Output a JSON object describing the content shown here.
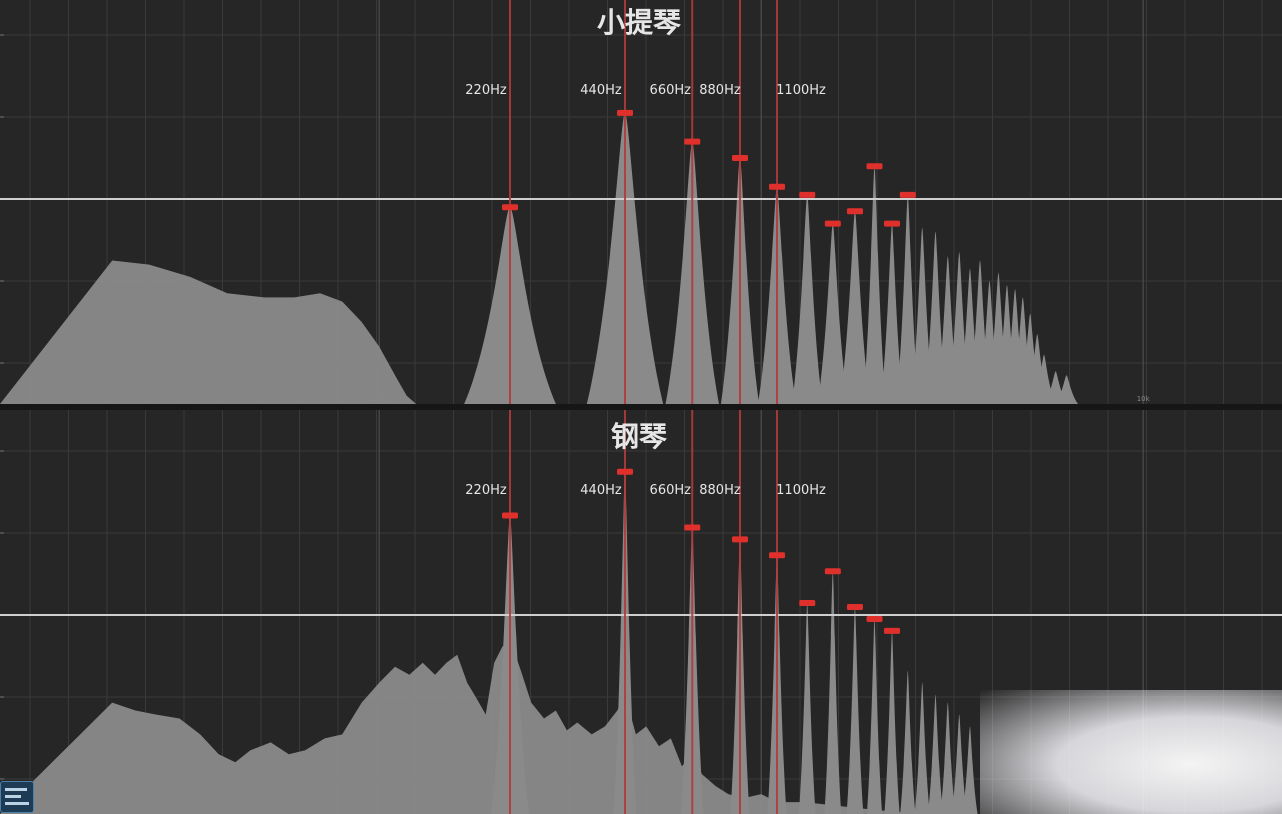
{
  "colors": {
    "background": "#262626",
    "grid": "#3a3a3a",
    "gridMajor": "#4a4a4a",
    "reference": "#cfcfcf",
    "spectrum": "#8a8a8a",
    "harmonic": "#b23a3a",
    "peakMarker": "#e0302b",
    "text": "#e6e6e6"
  },
  "chart_data": [
    {
      "type": "area",
      "title": "小提琴",
      "xscale": "log",
      "xlim": [
        20,
        20000
      ],
      "ylim": [
        0,
        100
      ],
      "reference_level": 50,
      "minor_tick_labels": [
        {
          "x": 100,
          "label": "100"
        },
        {
          "x": 10000,
          "label": "10k"
        }
      ],
      "harmonic_lines": [
        {
          "x": 220,
          "label": "220Hz"
        },
        {
          "x": 440,
          "label": "440Hz"
        },
        {
          "x": 660,
          "label": "660Hz"
        },
        {
          "x": 880,
          "label": "880Hz"
        },
        {
          "x": 1100,
          "label": "1100Hz"
        }
      ],
      "peaks": [
        {
          "x": 220,
          "y": 48
        },
        {
          "x": 440,
          "y": 71
        },
        {
          "x": 660,
          "y": 64
        },
        {
          "x": 880,
          "y": 60
        },
        {
          "x": 1100,
          "y": 53
        },
        {
          "x": 1320,
          "y": 51
        },
        {
          "x": 1540,
          "y": 44
        },
        {
          "x": 1760,
          "y": 47
        },
        {
          "x": 1980,
          "y": 58
        },
        {
          "x": 2200,
          "y": 44
        },
        {
          "x": 2420,
          "y": 51
        }
      ],
      "envelope": [
        [
          20,
          35
        ],
        [
          25,
          34
        ],
        [
          32,
          31
        ],
        [
          40,
          27
        ],
        [
          50,
          26
        ],
        [
          60,
          26
        ],
        [
          70,
          27
        ],
        [
          80,
          25
        ],
        [
          90,
          20
        ],
        [
          100,
          14
        ],
        [
          110,
          7
        ],
        [
          118,
          2
        ],
        [
          125,
          0
        ]
      ],
      "partials": [
        {
          "x": 220,
          "y": 48,
          "w": 0.12
        },
        {
          "x": 440,
          "y": 71,
          "w": 0.1
        },
        {
          "x": 660,
          "y": 64,
          "w": 0.07
        },
        {
          "x": 880,
          "y": 60,
          "w": 0.05
        },
        {
          "x": 1100,
          "y": 53,
          "w": 0.05
        },
        {
          "x": 1320,
          "y": 51,
          "w": 0.04
        },
        {
          "x": 1540,
          "y": 44,
          "w": 0.04
        },
        {
          "x": 1760,
          "y": 47,
          "w": 0.04
        },
        {
          "x": 1980,
          "y": 58,
          "w": 0.03
        },
        {
          "x": 2200,
          "y": 44,
          "w": 0.03
        },
        {
          "x": 2420,
          "y": 51,
          "w": 0.03
        },
        {
          "x": 2640,
          "y": 43,
          "w": 0.03
        },
        {
          "x": 2860,
          "y": 42,
          "w": 0.03
        },
        {
          "x": 3080,
          "y": 36,
          "w": 0.03
        },
        {
          "x": 3300,
          "y": 37,
          "w": 0.03
        },
        {
          "x": 3520,
          "y": 33,
          "w": 0.03
        },
        {
          "x": 3740,
          "y": 35,
          "w": 0.03
        },
        {
          "x": 3960,
          "y": 30,
          "w": 0.03
        },
        {
          "x": 4180,
          "y": 32,
          "w": 0.03
        },
        {
          "x": 4400,
          "y": 29,
          "w": 0.03
        },
        {
          "x": 4620,
          "y": 28,
          "w": 0.03
        },
        {
          "x": 4840,
          "y": 26,
          "w": 0.03
        },
        {
          "x": 5060,
          "y": 22,
          "w": 0.03
        },
        {
          "x": 5280,
          "y": 17,
          "w": 0.03
        },
        {
          "x": 5500,
          "y": 12,
          "w": 0.03
        },
        {
          "x": 5900,
          "y": 8,
          "w": 0.03
        },
        {
          "x": 6300,
          "y": 7,
          "w": 0.03
        }
      ]
    },
    {
      "type": "area",
      "title": "钢琴",
      "xscale": "log",
      "xlim": [
        20,
        20000
      ],
      "ylim": [
        0,
        100
      ],
      "reference_level": 50,
      "minor_tick_labels": [
        {
          "x": 100,
          "label": "100"
        }
      ],
      "harmonic_lines": [
        {
          "x": 220,
          "label": "220Hz"
        },
        {
          "x": 440,
          "label": "440Hz"
        },
        {
          "x": 660,
          "label": "660Hz"
        },
        {
          "x": 880,
          "label": "880Hz"
        },
        {
          "x": 1100,
          "label": "1100Hz"
        }
      ],
      "peaks": [
        {
          "x": 220,
          "y": 75
        },
        {
          "x": 440,
          "y": 86
        },
        {
          "x": 660,
          "y": 72
        },
        {
          "x": 880,
          "y": 69
        },
        {
          "x": 1100,
          "y": 65
        },
        {
          "x": 1320,
          "y": 53
        },
        {
          "x": 1540,
          "y": 61
        },
        {
          "x": 1760,
          "y": 52
        },
        {
          "x": 1980,
          "y": 49
        },
        {
          "x": 2200,
          "y": 46
        }
      ],
      "envelope": [
        [
          20,
          28
        ],
        [
          23,
          26
        ],
        [
          26,
          25
        ],
        [
          30,
          24
        ],
        [
          34,
          20
        ],
        [
          38,
          15
        ],
        [
          42,
          13
        ],
        [
          46,
          16
        ],
        [
          52,
          18
        ],
        [
          58,
          15
        ],
        [
          64,
          16
        ],
        [
          72,
          19
        ],
        [
          80,
          20
        ],
        [
          90,
          28
        ],
        [
          100,
          33
        ],
        [
          110,
          37
        ],
        [
          120,
          35
        ],
        [
          130,
          38
        ],
        [
          140,
          35
        ],
        [
          150,
          38
        ],
        [
          160,
          40
        ],
        [
          170,
          33
        ],
        [
          180,
          29
        ],
        [
          190,
          25
        ],
        [
          200,
          38
        ],
        [
          210,
          42
        ],
        [
          220,
          44
        ],
        [
          235,
          36
        ],
        [
          250,
          28
        ],
        [
          270,
          24
        ],
        [
          290,
          26
        ],
        [
          310,
          21
        ],
        [
          330,
          23
        ],
        [
          360,
          20
        ],
        [
          390,
          22
        ],
        [
          420,
          26
        ],
        [
          440,
          30
        ],
        [
          470,
          20
        ],
        [
          500,
          22
        ],
        [
          540,
          17
        ],
        [
          580,
          19
        ],
        [
          620,
          12
        ],
        [
          660,
          15
        ],
        [
          700,
          10
        ],
        [
          760,
          7
        ],
        [
          820,
          5
        ],
        [
          900,
          4
        ],
        [
          1000,
          5
        ],
        [
          1100,
          3
        ],
        [
          1300,
          3
        ],
        [
          1600,
          2
        ],
        [
          2000,
          1
        ],
        [
          2600,
          0
        ]
      ],
      "partials": [
        {
          "x": 220,
          "y": 75,
          "w": 0.05
        },
        {
          "x": 440,
          "y": 86,
          "w": 0.03
        },
        {
          "x": 660,
          "y": 72,
          "w": 0.03
        },
        {
          "x": 880,
          "y": 69,
          "w": 0.025
        },
        {
          "x": 1100,
          "y": 65,
          "w": 0.025
        },
        {
          "x": 1320,
          "y": 53,
          "w": 0.022
        },
        {
          "x": 1540,
          "y": 61,
          "w": 0.022
        },
        {
          "x": 1760,
          "y": 52,
          "w": 0.022
        },
        {
          "x": 1980,
          "y": 49,
          "w": 0.02
        },
        {
          "x": 2200,
          "y": 46,
          "w": 0.02
        },
        {
          "x": 2420,
          "y": 36,
          "w": 0.02
        },
        {
          "x": 2640,
          "y": 33,
          "w": 0.02
        },
        {
          "x": 2860,
          "y": 30,
          "w": 0.02
        },
        {
          "x": 3080,
          "y": 28,
          "w": 0.02
        },
        {
          "x": 3300,
          "y": 25,
          "w": 0.02
        },
        {
          "x": 3520,
          "y": 22,
          "w": 0.02
        }
      ]
    }
  ]
}
